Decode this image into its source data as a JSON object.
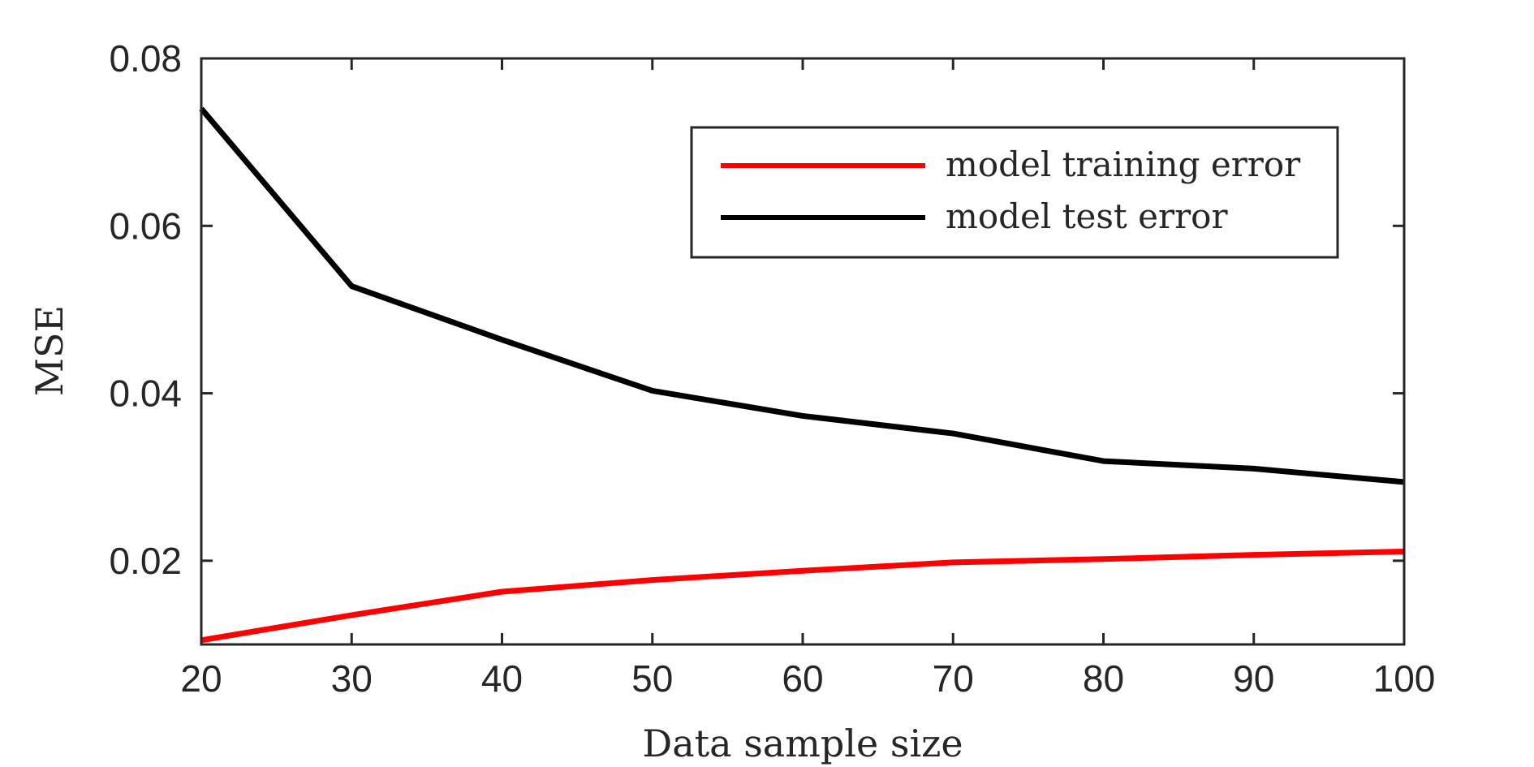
{
  "chart_data": {
    "type": "line",
    "xlabel": "Data sample size",
    "ylabel": "MSE",
    "xlim": [
      20,
      100
    ],
    "ylim": [
      0.01,
      0.08
    ],
    "xticks": [
      20,
      30,
      40,
      50,
      60,
      70,
      80,
      90,
      100
    ],
    "xtick_labels": [
      "20",
      "30",
      "40",
      "50",
      "60",
      "70",
      "80",
      "90",
      "100"
    ],
    "yticks": [
      0.02,
      0.04,
      0.06,
      0.08
    ],
    "ytick_labels": [
      "0.02",
      "0.04",
      "0.06",
      "0.08"
    ],
    "grid": false,
    "legend_position": "top-right",
    "x": [
      20,
      30,
      40,
      50,
      60,
      70,
      80,
      90,
      100
    ],
    "series": [
      {
        "name": "model training error",
        "color": "#ff0000",
        "values": [
          0.0105,
          0.0135,
          0.0163,
          0.0177,
          0.0188,
          0.0198,
          0.0202,
          0.0207,
          0.0211
        ]
      },
      {
        "name": "model test error",
        "color": "#000000",
        "values": [
          0.074,
          0.0528,
          0.0464,
          0.0403,
          0.0373,
          0.0352,
          0.0319,
          0.031,
          0.0294
        ]
      }
    ]
  }
}
